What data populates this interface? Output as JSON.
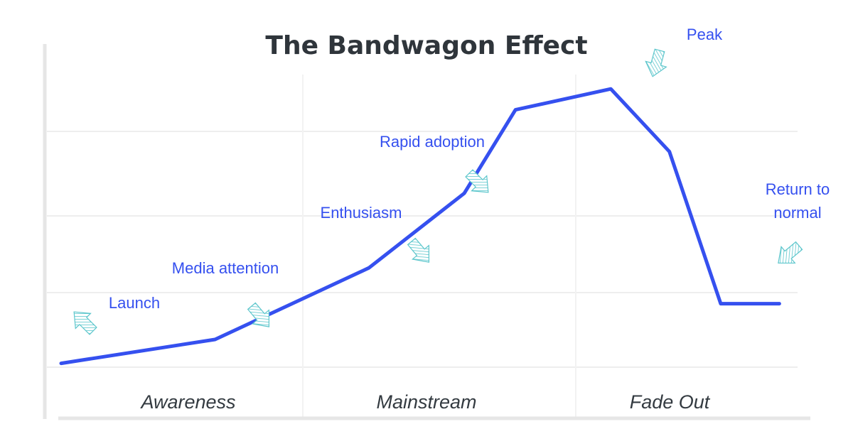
{
  "chart_data": {
    "type": "line",
    "title": "The Bandwagon Effect",
    "xlabel": "",
    "ylabel": "",
    "grid": true,
    "phases": [
      "Awareness",
      "Mainstream",
      "Fade Out"
    ],
    "x": [
      0,
      0.21,
      0.42,
      0.55,
      0.62,
      0.75,
      0.83,
      0.9,
      0.98
    ],
    "series": [
      {
        "values": [
          0.02,
          0.1,
          0.34,
          0.59,
          0.87,
          0.94,
          0.73,
          0.22,
          0.22
        ]
      }
    ],
    "annotations": [
      {
        "lines": [
          "Launch"
        ],
        "point": 0
      },
      {
        "lines": [
          "Media attention"
        ],
        "point": 1
      },
      {
        "lines": [
          "Enthusiasm"
        ],
        "point": 2
      },
      {
        "lines": [
          "Rapid adoption"
        ],
        "point": 3
      },
      {
        "lines": [
          "Peak"
        ],
        "point": 5
      },
      {
        "lines": [
          "Return to",
          "normal"
        ],
        "point": 7
      }
    ],
    "colors": {
      "line": "#3550ef",
      "annotation_text": "#3550ef",
      "arrow": "#5cc6cc",
      "grid": "#eeeeee",
      "axis": "#e6e6e6",
      "title": "#2f353b"
    }
  }
}
